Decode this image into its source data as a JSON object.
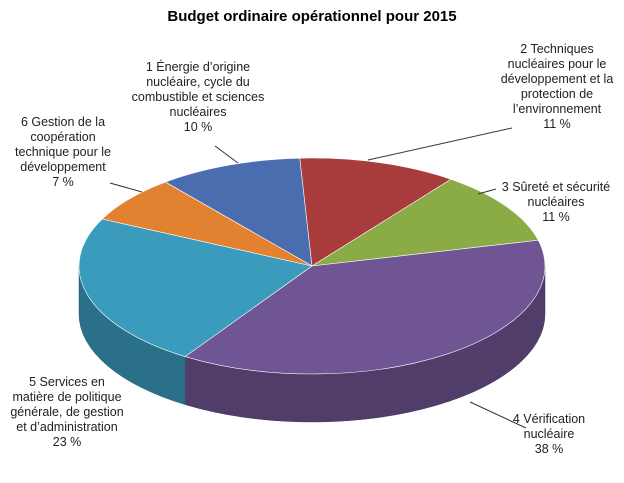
{
  "chart_data": {
    "type": "pie3d",
    "title": "Budget ordinaire opérationnel pour 2015",
    "categories": [
      "1 Énergie d’origine nucléaire, cycle du combustible et sciences nucléaires",
      "2 Techniques nucléaires pour le développement et la protection de l’environnement",
      "3 Sûreté et sécurité nucléaires",
      "4 Vérification nucléaire",
      "5 Services en matière de politique générale, de gestion et d’administration",
      "6 Gestion de la coopération technique pour le développement"
    ],
    "values": [
      10,
      11,
      11,
      38,
      23,
      7
    ],
    "value_labels": [
      "10 %",
      "11 %",
      "11 %",
      "38 %",
      "23 %",
      "7 %"
    ],
    "colors": [
      "#4a6db0",
      "#a83b3b",
      "#8bab47",
      "#6f5593",
      "#3a9bbd",
      "#e2812f"
    ]
  }
}
